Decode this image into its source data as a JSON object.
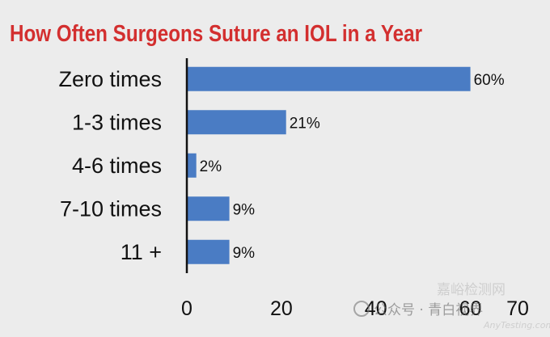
{
  "chart_data": {
    "type": "bar",
    "orientation": "horizontal",
    "title": "How Often Surgeons Suture an IOL in a Year",
    "categories": [
      "Zero times",
      "1-3 times",
      "4-6 times",
      "7-10 times",
      "11 +"
    ],
    "values": [
      60,
      21,
      2,
      9,
      9
    ],
    "data_labels": [
      "60%",
      "21%",
      "2%",
      "9%",
      "9%"
    ],
    "xlim": [
      0,
      70
    ],
    "x_ticks": [
      0,
      20,
      40,
      60,
      70
    ],
    "x_tick_labels": [
      "0",
      "20",
      "40",
      "60",
      "70"
    ],
    "xlabel": "",
    "ylabel": "",
    "grid": false,
    "colors": {
      "bar": "#4a7cc4",
      "title": "#d32f2f",
      "axis": "#111111",
      "background": "#ececec"
    }
  },
  "watermark": {
    "account_label": "公众号 · 青白视界",
    "site_label": "AnyTesting.com",
    "logo_text": "嘉峪检测网"
  }
}
